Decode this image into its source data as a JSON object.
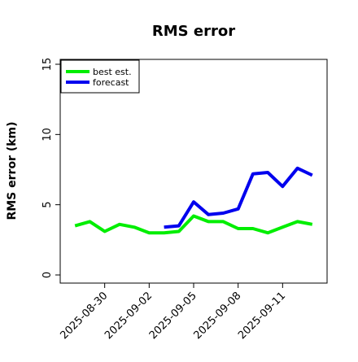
{
  "chart_data": {
    "type": "line",
    "title": "RMS error",
    "xlabel": "",
    "ylabel": "RMS error (km)",
    "x_type": "date",
    "xlim": [
      "2025-08-27",
      "2025-09-14"
    ],
    "ylim": [
      0,
      15
    ],
    "y_ticks": [
      0,
      5,
      10,
      15
    ],
    "x_tick_labels": [
      "2025-08-30",
      "2025-09-02",
      "2025-09-05",
      "2025-09-08",
      "2025-09-11"
    ],
    "x_ticks": [
      "2025-08-30",
      "2025-09-02",
      "2025-09-05",
      "2025-09-08",
      "2025-09-11"
    ],
    "grid": false,
    "legend_position": "top-left",
    "series": [
      {
        "name": "best est.",
        "color": "#00ee00",
        "points": [
          {
            "x": "2025-08-28",
            "y": 3.5
          },
          {
            "x": "2025-08-29",
            "y": 3.8
          },
          {
            "x": "2025-08-30",
            "y": 3.1
          },
          {
            "x": "2025-08-31",
            "y": 3.6
          },
          {
            "x": "2025-09-01",
            "y": 3.4
          },
          {
            "x": "2025-09-02",
            "y": 3.0
          },
          {
            "x": "2025-09-03",
            "y": 3.0
          },
          {
            "x": "2025-09-04",
            "y": 3.1
          },
          {
            "x": "2025-09-05",
            "y": 4.2
          },
          {
            "x": "2025-09-06",
            "y": 3.8
          },
          {
            "x": "2025-09-07",
            "y": 3.8
          },
          {
            "x": "2025-09-08",
            "y": 3.3
          },
          {
            "x": "2025-09-09",
            "y": 3.3
          },
          {
            "x": "2025-09-10",
            "y": 3.0
          },
          {
            "x": "2025-09-11",
            "y": 3.4
          },
          {
            "x": "2025-09-12",
            "y": 3.8
          },
          {
            "x": "2025-09-13",
            "y": 3.6
          }
        ]
      },
      {
        "name": "forecast",
        "color": "#0000ee",
        "points": [
          {
            "x": "2025-09-03",
            "y": 3.4
          },
          {
            "x": "2025-09-04",
            "y": 3.5
          },
          {
            "x": "2025-09-05",
            "y": 5.2
          },
          {
            "x": "2025-09-06",
            "y": 4.3
          },
          {
            "x": "2025-09-07",
            "y": 4.4
          },
          {
            "x": "2025-09-08",
            "y": 4.7
          },
          {
            "x": "2025-09-09",
            "y": 7.2
          },
          {
            "x": "2025-09-10",
            "y": 7.3
          },
          {
            "x": "2025-09-11",
            "y": 6.3
          },
          {
            "x": "2025-09-12",
            "y": 7.6
          },
          {
            "x": "2025-09-13",
            "y": 7.1
          }
        ]
      }
    ]
  }
}
